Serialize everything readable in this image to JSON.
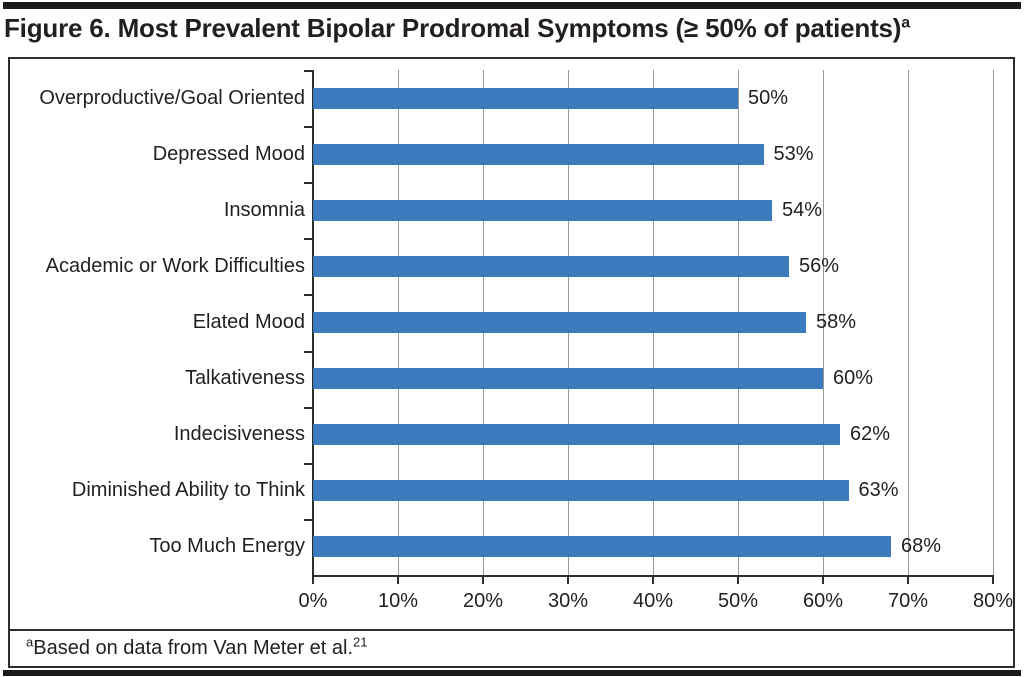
{
  "header": {
    "title": "Figure 6. Most Prevalent Bipolar Prodromal Symptoms (≥ 50% of patients)",
    "title_sup": "a"
  },
  "footnote": {
    "marker_sup": "a",
    "text": "Based on data from Van Meter et al.",
    "ref_sup": "21"
  },
  "colors": {
    "bar": "#3B7ABD",
    "axis": "#2D2D2D",
    "gridline": "#999999",
    "text": "#231F20",
    "rule": "#1A1A1A"
  },
  "chart_data": {
    "type": "bar",
    "orientation": "horizontal",
    "title": "Most Prevalent Bipolar Prodromal Symptoms (≥ 50% of patients)",
    "categories": [
      "Overproductive/Goal Oriented",
      "Depressed Mood",
      "Insomnia",
      "Academic or Work Difficulties",
      "Elated Mood",
      "Talkativeness",
      "Indecisiveness",
      "Diminished Ability to Think",
      "Too Much Energy"
    ],
    "values": [
      50,
      53,
      54,
      56,
      58,
      60,
      62,
      63,
      68
    ],
    "value_labels": [
      "50%",
      "53%",
      "54%",
      "56%",
      "58%",
      "60%",
      "62%",
      "63%",
      "68%"
    ],
    "xlabel": "",
    "ylabel": "",
    "xlim": [
      0,
      80
    ],
    "xticks": [
      0,
      10,
      20,
      30,
      40,
      50,
      60,
      70,
      80
    ],
    "xtick_labels": [
      "0%",
      "10%",
      "20%",
      "30%",
      "40%",
      "50%",
      "60%",
      "70%",
      "80%"
    ],
    "grid": "vertical",
    "legend": "none"
  }
}
